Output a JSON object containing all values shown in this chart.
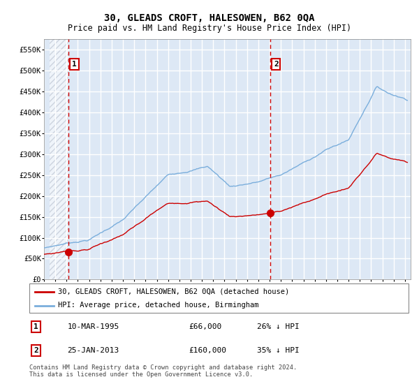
{
  "title": "30, GLEADS CROFT, HALESOWEN, B62 0QA",
  "subtitle": "Price paid vs. HM Land Registry's House Price Index (HPI)",
  "ylim": [
    0,
    575000
  ],
  "yticks": [
    0,
    50000,
    100000,
    150000,
    200000,
    250000,
    300000,
    350000,
    400000,
    450000,
    500000,
    550000
  ],
  "ytick_labels": [
    "£0",
    "£50K",
    "£100K",
    "£150K",
    "£200K",
    "£250K",
    "£300K",
    "£350K",
    "£400K",
    "£450K",
    "£500K",
    "£550K"
  ],
  "sale1_date": 1995.19,
  "sale1_price": 66000,
  "sale2_date": 2013.07,
  "sale2_price": 160000,
  "sale_color": "#cc0000",
  "hpi_color": "#7aaedc",
  "legend_label1": "30, GLEADS CROFT, HALESOWEN, B62 0QA (detached house)",
  "legend_label2": "HPI: Average price, detached house, Birmingham",
  "table_row1": [
    "1",
    "10-MAR-1995",
    "£66,000",
    "26% ↓ HPI"
  ],
  "table_row2": [
    "2",
    "25-JAN-2013",
    "£160,000",
    "35% ↓ HPI"
  ],
  "footnote": "Contains HM Land Registry data © Crown copyright and database right 2024.\nThis data is licensed under the Open Government Licence v3.0.",
  "background_blue_color": "#dde8f5",
  "hatch_end": 1995.19,
  "xmin": 1993.5,
  "xmax": 2025.5
}
